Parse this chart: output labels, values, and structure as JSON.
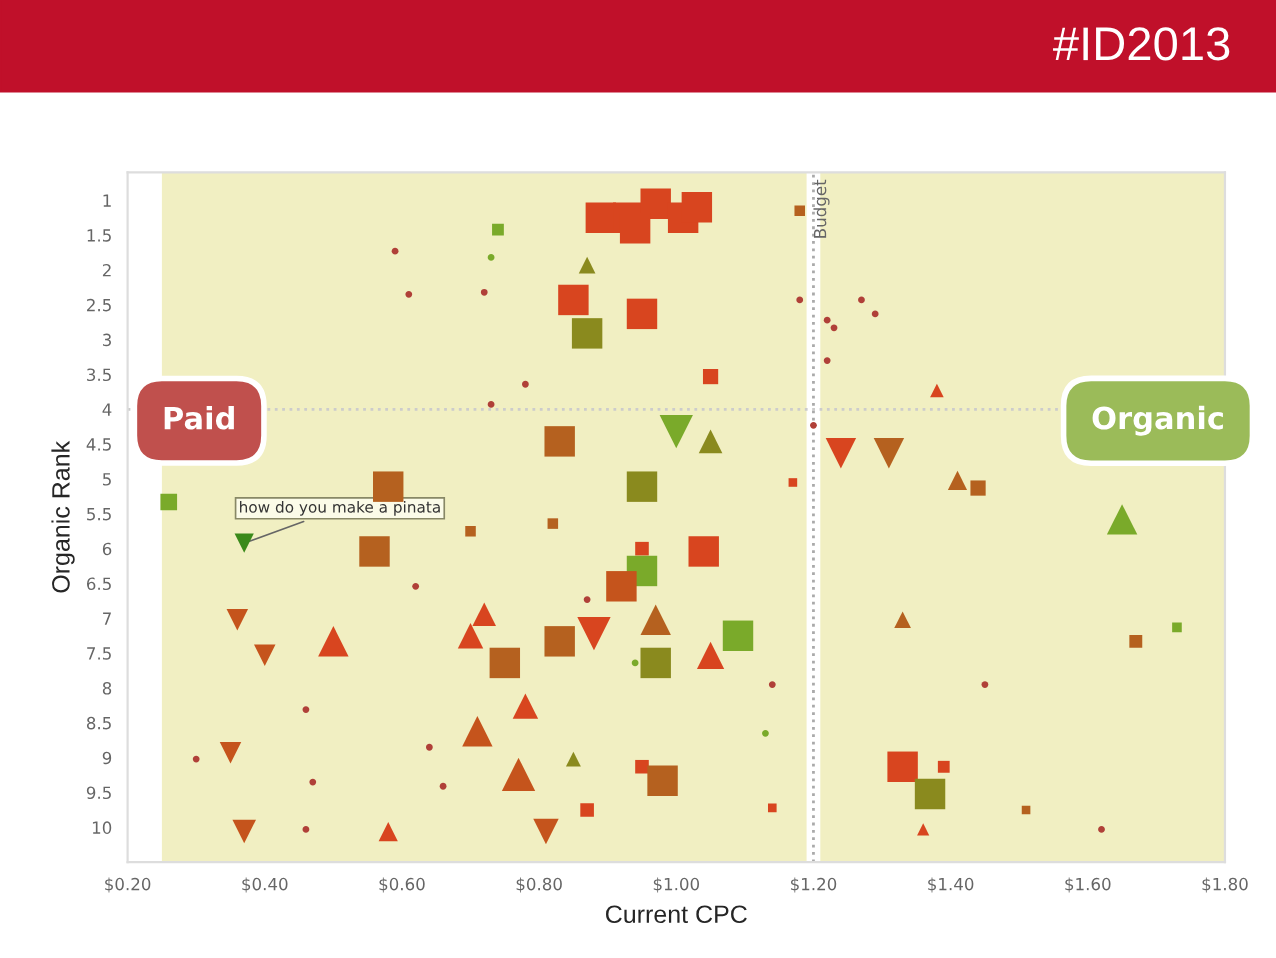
{
  "chart_data": {
    "type": "bubble",
    "title": "#ID2013",
    "xlabel": "Current CPC",
    "ylabel": "Organic Rank",
    "xlim": [
      0.2,
      1.8
    ],
    "ylim": [
      10.5,
      0.6
    ],
    "xticks": [
      {
        "value": 0.2,
        "label": "$0.20"
      },
      {
        "value": 0.4,
        "label": "$0.40"
      },
      {
        "value": 0.6,
        "label": "$0.60"
      },
      {
        "value": 0.8,
        "label": "$0.80"
      },
      {
        "value": 1.0,
        "label": "$1.00"
      },
      {
        "value": 1.2,
        "label": "$1.20"
      },
      {
        "value": 1.4,
        "label": "$1.40"
      },
      {
        "value": 1.6,
        "label": "$1.60"
      },
      {
        "value": 1.8,
        "label": "$1.80"
      }
    ],
    "yticks": [
      1,
      1.5,
      2,
      2.5,
      3,
      3.5,
      4,
      4.5,
      5,
      5.5,
      6,
      6.5,
      7,
      7.5,
      8,
      8.5,
      9,
      9.5,
      10
    ],
    "grid": false,
    "ref_lines": [
      {
        "axis": "x",
        "value": 1.2,
        "label": "Budget",
        "color": "#aaaaaa",
        "line_style": "dotted"
      },
      {
        "axis": "y",
        "value": 4,
        "label": null,
        "color": "#cccccc",
        "line_style": "dotted"
      }
    ],
    "bands": [
      {
        "axis": "x",
        "from": 0.25,
        "to": 1.19,
        "label": "Paid",
        "color": "#f1efc2"
      },
      {
        "axis": "x",
        "from": 1.21,
        "to": 1.8,
        "label": "Organic",
        "color": "#f1efc2"
      }
    ],
    "annotations": [
      {
        "text": "how do you make a pinata",
        "x": 0.37,
        "y": 5.92
      }
    ],
    "series": [
      {
        "marker": "square",
        "x": [
          0.89,
          0.93,
          0.97,
          1.01,
          1.03,
          0.94,
          0.74,
          1.18,
          0.85,
          0.95,
          0.87,
          1.05,
          1.44,
          1.67,
          1.73,
          1.33,
          1.37,
          1.39,
          1.51,
          0.83,
          0.58,
          0.95,
          0.26,
          1.17,
          0.7,
          0.82,
          0.56,
          0.95,
          1.04,
          0.95,
          0.92,
          0.83,
          1.09,
          0.75,
          0.97,
          0.95,
          0.98,
          0.87,
          1.14
        ],
        "values": [
          1.25,
          1.25,
          1.05,
          1.25,
          1.1,
          1.4,
          1.42,
          1.15,
          2.43,
          2.63,
          2.91,
          3.53,
          5.13,
          7.33,
          7.13,
          9.13,
          9.52,
          9.13,
          9.75,
          4.46,
          5.11,
          5.11,
          5.33,
          5.05,
          5.75,
          5.64,
          6.04,
          6.0,
          6.04,
          6.32,
          6.54,
          7.33,
          7.25,
          7.64,
          7.64,
          9.13,
          9.33,
          9.75,
          9.72
        ],
        "sizes": [
          1,
          1,
          1,
          1,
          1,
          1,
          0.15,
          0.12,
          1,
          1,
          1,
          0.25,
          0.25,
          0.18,
          0.1,
          1,
          1,
          0.15,
          0.08,
          1,
          1,
          1,
          0.3,
          0.08,
          0.12,
          0.12,
          1,
          0.2,
          1,
          1,
          1,
          1,
          1,
          1,
          1,
          0.2,
          1,
          0.2,
          0.08
        ],
        "colors": [
          "#d8451f",
          "#d8451f",
          "#d8451f",
          "#d8451f",
          "#d8451f",
          "#d8451f",
          "#7aaa2a",
          "#b5611f",
          "#d8451f",
          "#d8451f",
          "#8a8a1e",
          "#d8451f",
          "#b5611f",
          "#b5611f",
          "#7aaa2a",
          "#d8451f",
          "#8a8a1e",
          "#d8451f",
          "#b5611f",
          "#b5611f",
          "#b5611f",
          "#8a8a1e",
          "#7aaa2a",
          "#d8451f",
          "#b5611f",
          "#b5611f",
          "#b5611f",
          "#d8451f",
          "#d8451f",
          "#7aaa2a",
          "#c5541c",
          "#b5611f",
          "#7aaa2a",
          "#b5611f",
          "#8a8a1e",
          "#d8451f",
          "#b5611f",
          "#d8451f",
          "#d8451f"
        ]
      },
      {
        "marker": "triangle",
        "x": [
          0.87,
          1.38,
          1.41,
          1.65,
          1.33,
          1.36,
          1.05,
          0.72,
          0.5,
          0.7,
          0.97,
          1.05,
          0.78,
          0.71,
          0.85,
          0.77,
          0.58
        ],
        "values": [
          1.93,
          3.73,
          5.02,
          5.58,
          7.02,
          10.03,
          4.46,
          6.94,
          7.33,
          7.25,
          7.02,
          7.53,
          8.26,
          8.62,
          9.02,
          9.24,
          10.06
        ],
        "sizes": [
          0.15,
          0.1,
          0.2,
          0.5,
          0.15,
          0.08,
          0.3,
          0.3,
          0.5,
          0.35,
          0.5,
          0.4,
          0.35,
          0.5,
          0.12,
          0.6,
          0.2
        ],
        "colors": [
          "#8a8a1e",
          "#d8451f",
          "#b5611f",
          "#7aaa2a",
          "#b5611f",
          "#d8451f",
          "#8a8a1e",
          "#d8451f",
          "#d8451f",
          "#d8451f",
          "#b5611f",
          "#d8451f",
          "#d8451f",
          "#c5541c",
          "#8a8a1e",
          "#c5541c",
          "#d8451f"
        ]
      },
      {
        "marker": "triangle-down",
        "x": [
          1.24,
          1.31,
          1.0,
          0.37,
          0.36,
          0.88,
          0.4,
          0.35,
          0.37,
          0.81
        ],
        "values": [
          4.63,
          4.63,
          4.32,
          5.92,
          7.02,
          7.22,
          7.53,
          8.93,
          10.06,
          10.06
        ],
        "sizes": [
          0.5,
          0.5,
          0.6,
          0.2,
          0.25,
          0.6,
          0.25,
          0.25,
          0.3,
          0.35
        ],
        "colors": [
          "#d8451f",
          "#b5611f",
          "#7aaa2a",
          "#3a8a1a",
          "#c5541c",
          "#d8451f",
          "#c5541c",
          "#c5541c",
          "#c5541c",
          "#c5541c"
        ]
      },
      {
        "marker": "circle",
        "x": [
          0.59,
          0.61,
          0.72,
          0.73,
          0.78,
          0.73,
          1.18,
          1.2,
          1.27,
          1.29,
          1.22,
          1.23,
          1.22,
          1.45,
          1.62,
          0.62,
          0.87,
          0.94,
          1.14,
          0.46,
          1.13,
          0.64,
          0.3,
          0.47,
          0.66,
          0.46
        ],
        "values": [
          1.73,
          2.35,
          2.32,
          1.82,
          3.64,
          3.93,
          2.43,
          4.23,
          2.43,
          2.63,
          2.72,
          2.83,
          3.3,
          7.95,
          10.03,
          6.54,
          6.73,
          7.64,
          7.95,
          8.31,
          8.65,
          8.85,
          9.02,
          9.35,
          9.41,
          10.03
        ],
        "sizes": [
          0.05,
          0.05,
          0.05,
          0.05,
          0.05,
          0.05,
          0.05,
          0.05,
          0.05,
          0.05,
          0.05,
          0.05,
          0.05,
          0.05,
          0.05,
          0.05,
          0.05,
          0.05,
          0.05,
          0.05,
          0.05,
          0.05,
          0.05,
          0.05,
          0.05,
          0.05
        ],
        "colors": [
          "#b04038",
          "#b04038",
          "#b04038",
          "#7aaa2a",
          "#b04038",
          "#b04038",
          "#b04038",
          "#b04038",
          "#b04038",
          "#b04038",
          "#b04038",
          "#b04038",
          "#b04038",
          "#b04038",
          "#b04038",
          "#b04038",
          "#b04038",
          "#7aaa2a",
          "#b04038",
          "#b04038",
          "#7aaa2a",
          "#b04038",
          "#b04038",
          "#b04038",
          "#b04038",
          "#b04038"
        ]
      }
    ]
  }
}
